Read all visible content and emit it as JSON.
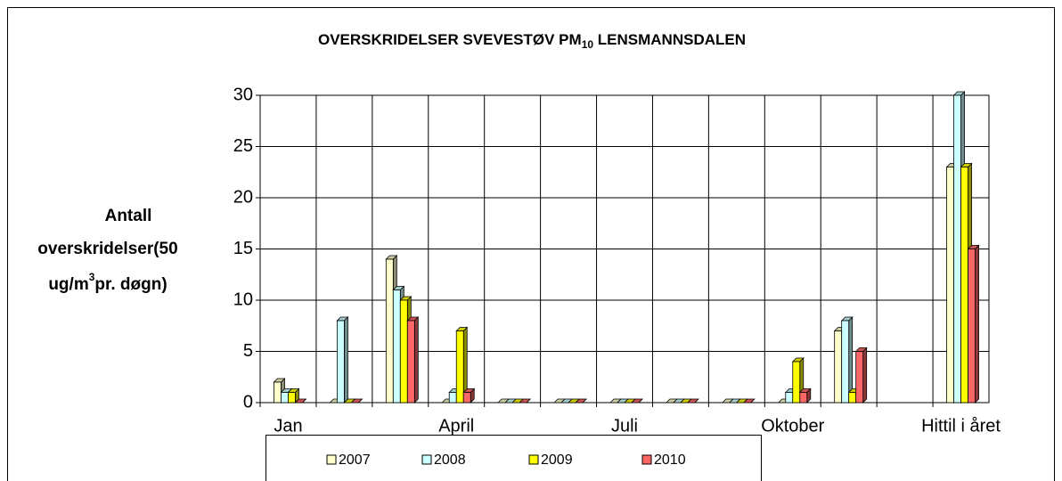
{
  "chart_data": {
    "type": "bar3d",
    "title": [
      "OVERSKRIDELSER SVEVESTØV PM",
      "10",
      " LENSMANNSDALEN"
    ],
    "ylabel": {
      "lines": [
        "Antall",
        "overskridelser(50"
      ],
      "last": [
        "ug/m",
        "3",
        "pr. døgn)"
      ]
    },
    "categories": [
      "Jan",
      null,
      null,
      "April",
      null,
      null,
      "Juli",
      null,
      null,
      "Oktober",
      null,
      null,
      "Hittil i året"
    ],
    "series": [
      {
        "name": "2007",
        "color": "#ffffcc",
        "values": [
          2,
          0,
          14,
          0,
          0,
          0,
          0,
          0,
          0,
          0,
          7,
          null,
          23
        ]
      },
      {
        "name": "2008",
        "color": "#ccffff",
        "values": [
          1,
          8,
          11,
          1,
          0,
          0,
          0,
          0,
          0,
          1,
          8,
          null,
          30
        ]
      },
      {
        "name": "2009",
        "color": "#ffff00",
        "values": [
          1,
          0,
          10,
          7,
          0,
          0,
          0,
          0,
          0,
          4,
          1,
          null,
          23
        ]
      },
      {
        "name": "2010",
        "color": "#ff6666",
        "values": [
          0,
          0,
          8,
          1,
          0,
          0,
          0,
          0,
          0,
          1,
          5,
          null,
          15
        ]
      }
    ],
    "ylim": [
      0,
      30
    ],
    "yticks": [
      0,
      5,
      10,
      15,
      20,
      25,
      30
    ],
    "grid": true,
    "legend": "bottom"
  }
}
